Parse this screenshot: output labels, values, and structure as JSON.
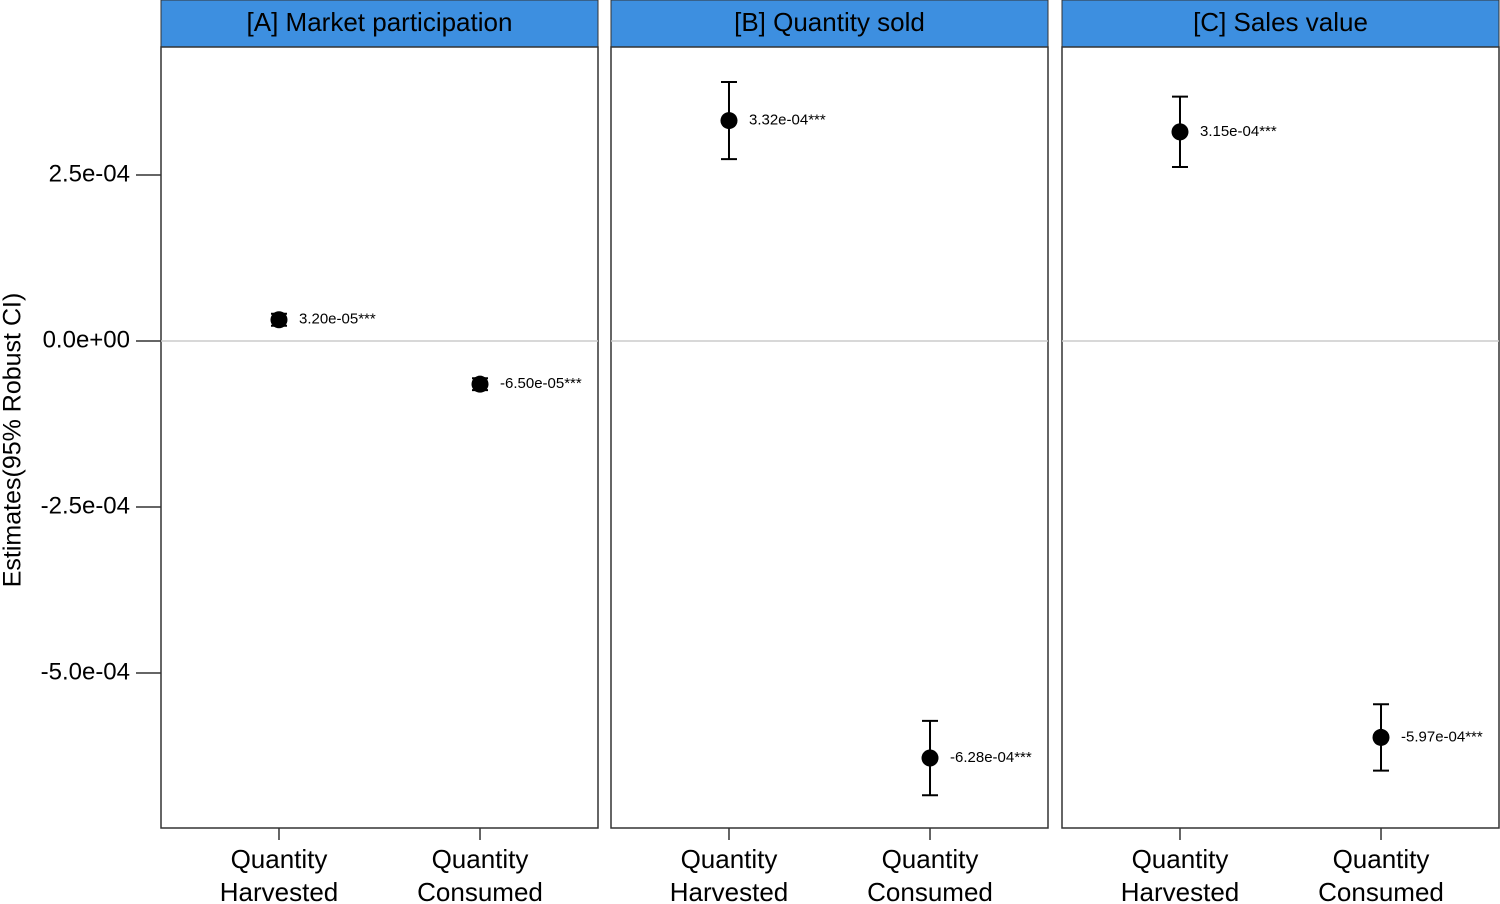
{
  "chart_data": [
    {
      "type": "errorbar",
      "title": "[A] Market participation",
      "ylabel": "Estimates(95% Robust CI)",
      "categories": [
        "Quantity Harvested",
        "Quantity Consumed"
      ],
      "values": [
        3.2e-05,
        -6.5e-05
      ],
      "errors": [
        9e-06,
        9e-06
      ],
      "value_labels": [
        "3.20e-05***",
        "-6.50e-05***"
      ],
      "ylim": [
        -0.0007334,
        0.0004428
      ],
      "yticks": [
        {
          "value": 0.00025,
          "label": "2.5e-04"
        },
        {
          "value": 0,
          "label": "0.0e+00"
        },
        {
          "value": -0.00025,
          "label": "-2.5e-04"
        },
        {
          "value": -0.0005,
          "label": "-5.0e-04"
        }
      ],
      "hline": 0,
      "color": "#000000",
      "strip_color": "#3d8fe0"
    },
    {
      "type": "errorbar",
      "title": "[B] Quantity sold",
      "categories": [
        "Quantity Harvested",
        "Quantity Consumed"
      ],
      "values": [
        0.000332,
        -0.000628
      ],
      "errors": [
        5.8e-05,
        5.6e-05
      ],
      "value_labels": [
        "3.32e-04***",
        "-6.28e-04***"
      ],
      "ylim": [
        -0.0007334,
        0.0004428
      ],
      "hline": 0,
      "color": "#000000",
      "strip_color": "#3d8fe0"
    },
    {
      "type": "errorbar",
      "title": "[C] Sales value",
      "categories": [
        "Quantity Harvested",
        "Quantity Consumed"
      ],
      "values": [
        0.000315,
        -0.000597
      ],
      "errors": [
        5.3e-05,
        5e-05
      ],
      "value_labels": [
        "3.15e-04***",
        "-5.97e-04***"
      ],
      "ylim": [
        -0.0007334,
        0.0004428
      ],
      "hline": 0,
      "color": "#000000",
      "strip_color": "#3d8fe0"
    }
  ]
}
